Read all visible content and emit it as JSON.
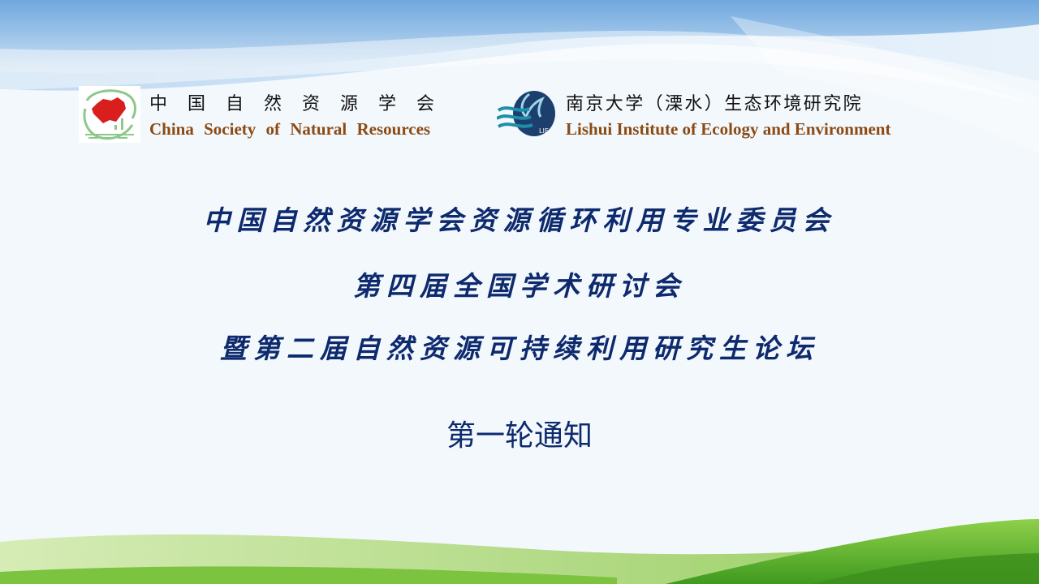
{
  "org1": {
    "name_zh": "中国自然资源学会",
    "name_en": "China Society of Natural Resources",
    "logo_icon": "china-map-logo-icon"
  },
  "org2": {
    "name_zh": "南京大学（溧水）生态环境研究院",
    "name_en": "Lishui Institute of Ecology and Environment",
    "logo_icon": "lishui-wave-logo-icon",
    "logo_text": "LIE"
  },
  "title": {
    "line1": "中国自然资源学会资源循环利用专业委员会",
    "line2": "第四届全国学术研讨会",
    "line3": "暨第二届自然资源可持续利用研究生论坛"
  },
  "notice": "第一轮通知",
  "colors": {
    "title": "#0e2a6e",
    "org_en": "#8b4a14",
    "sky": "#7fb3e3",
    "grass": "#6ab82f"
  }
}
